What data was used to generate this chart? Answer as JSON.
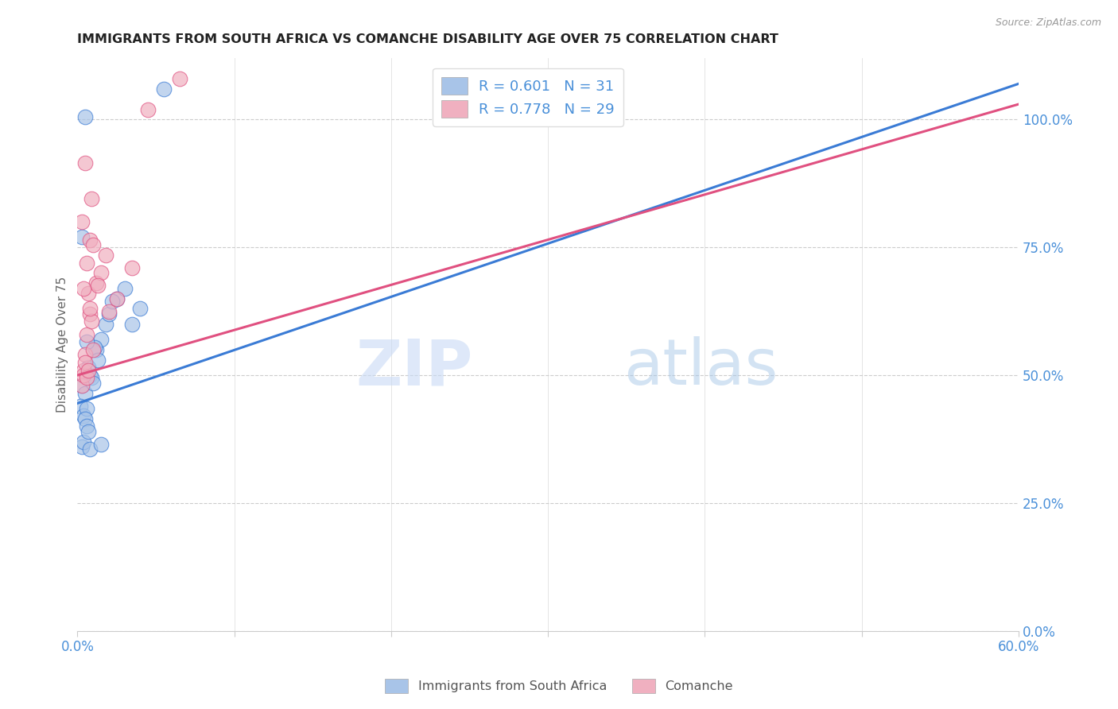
{
  "title": "IMMIGRANTS FROM SOUTH AFRICA VS COMANCHE DISABILITY AGE OVER 75 CORRELATION CHART",
  "source": "Source: ZipAtlas.com",
  "ylabel": "Disability Age Over 75",
  "right_yticks": [
    0.0,
    25.0,
    50.0,
    75.0,
    100.0
  ],
  "xlim": [
    0.0,
    60.0
  ],
  "ylim": [
    0.0,
    112.0
  ],
  "blue_R": 0.601,
  "blue_N": 31,
  "pink_R": 0.778,
  "pink_N": 29,
  "legend1_label": "Immigrants from South Africa",
  "legend2_label": "Comanche",
  "blue_color": "#a8c4e8",
  "pink_color": "#f0b0c0",
  "blue_line_color": "#3a7bd5",
  "pink_line_color": "#e05080",
  "blue_scatter_x": [
    0.3,
    0.5,
    0.8,
    1.2,
    1.5,
    1.8,
    2.0,
    2.5,
    3.0,
    3.5,
    4.0,
    0.2,
    0.4,
    0.6,
    0.7,
    0.9,
    1.0,
    0.3,
    0.4,
    0.5,
    0.6,
    0.7,
    0.8,
    1.1,
    1.3,
    0.3,
    0.5,
    0.6,
    1.5,
    2.2,
    5.5
  ],
  "blue_scatter_y": [
    48.0,
    46.5,
    50.0,
    55.0,
    57.0,
    60.0,
    62.0,
    65.0,
    67.0,
    60.0,
    63.0,
    44.0,
    42.0,
    43.5,
    51.5,
    49.5,
    48.5,
    36.0,
    37.0,
    41.5,
    40.0,
    39.0,
    35.5,
    55.5,
    53.0,
    77.0,
    100.5,
    56.5,
    36.5,
    64.5,
    106.0
  ],
  "pink_scatter_x": [
    0.3,
    0.4,
    0.5,
    0.6,
    0.7,
    0.8,
    0.9,
    1.0,
    1.2,
    1.5,
    1.8,
    2.0,
    2.5,
    0.3,
    0.4,
    0.5,
    0.6,
    0.7,
    0.8,
    1.0,
    3.5,
    0.5,
    0.9,
    1.3,
    0.4,
    4.5,
    6.5,
    0.6,
    0.8
  ],
  "pink_scatter_y": [
    48.0,
    51.0,
    54.0,
    58.0,
    66.0,
    62.0,
    60.5,
    55.0,
    68.0,
    70.0,
    73.5,
    62.5,
    65.0,
    80.0,
    50.0,
    52.5,
    49.5,
    51.0,
    76.5,
    75.5,
    71.0,
    91.5,
    84.5,
    67.5,
    67.0,
    102.0,
    108.0,
    72.0,
    63.0
  ],
  "blue_line_x0": 0.0,
  "blue_line_y0": 44.5,
  "blue_line_x1": 60.0,
  "blue_line_y1": 107.0,
  "pink_line_x0": 0.0,
  "pink_line_y0": 50.0,
  "pink_line_x1": 60.0,
  "pink_line_y1": 103.0,
  "watermark_zip": "ZIP",
  "watermark_atlas": "atlas",
  "bg_color": "#ffffff",
  "grid_color": "#cccccc"
}
